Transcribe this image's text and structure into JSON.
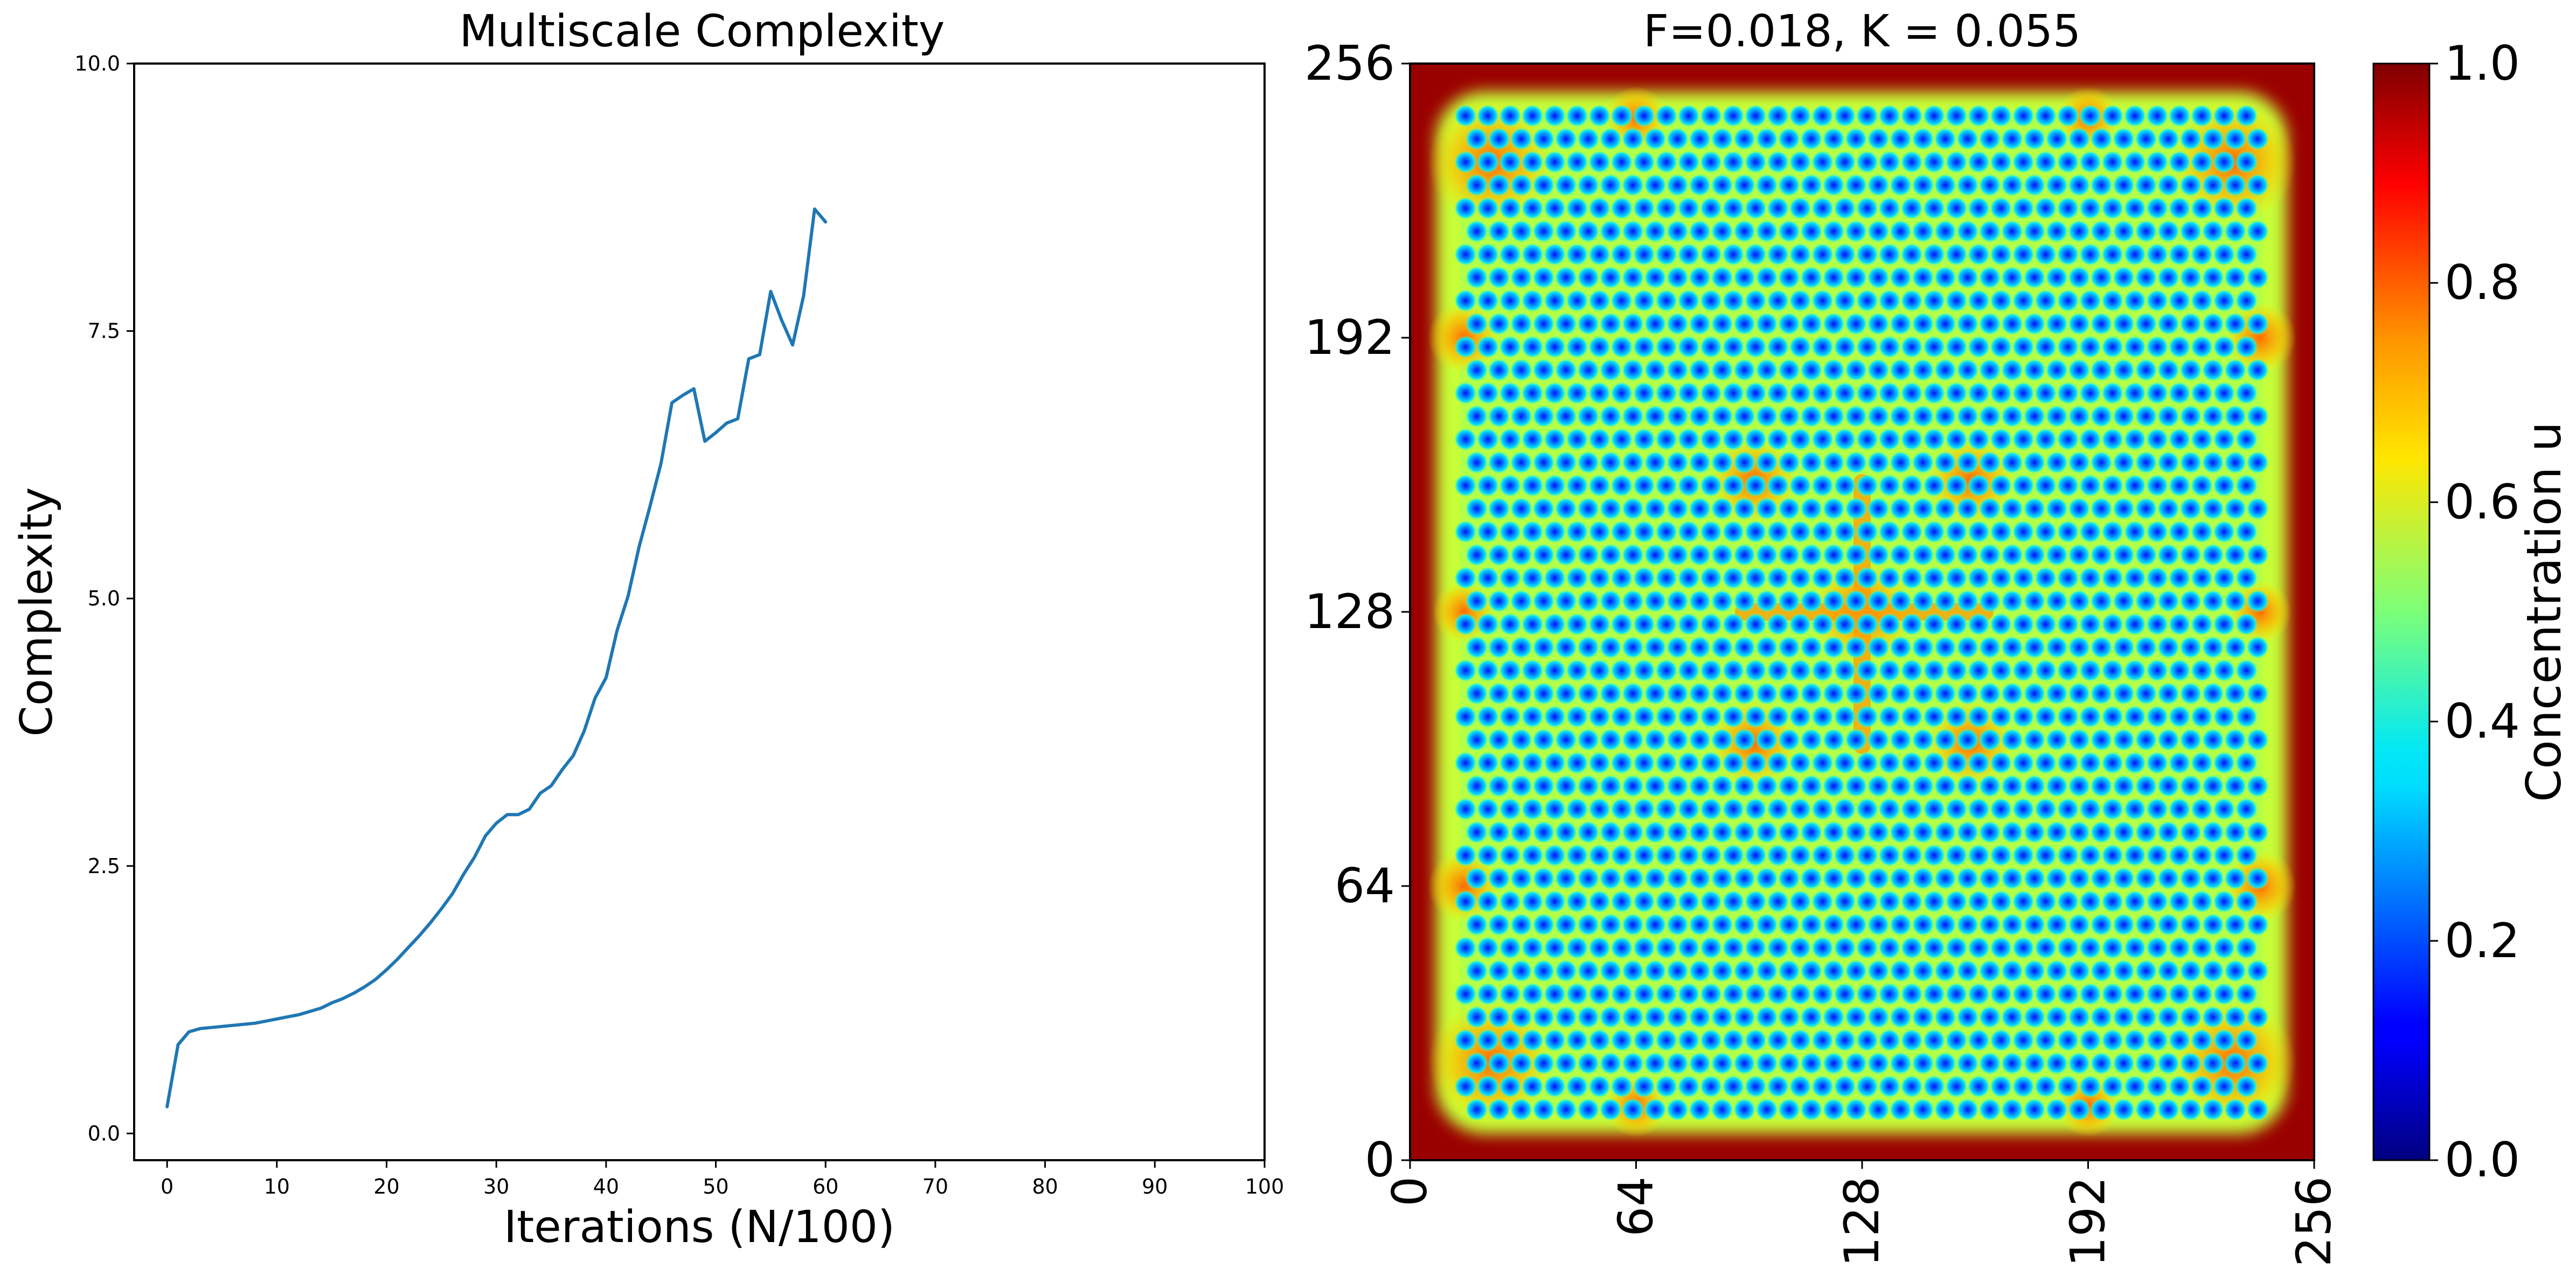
{
  "chart_data": [
    {
      "type": "line",
      "title": "Multiscale Complexity",
      "xlabel": "Iterations (N/100)",
      "ylabel": "Complexity",
      "xlim": [
        -3,
        100
      ],
      "ylim": [
        -0.25,
        10.0
      ],
      "xticks": [
        0,
        10,
        20,
        30,
        40,
        50,
        60,
        70,
        80,
        90,
        100
      ],
      "xtick_labels": [
        "0",
        "10",
        "20",
        "30",
        "40",
        "50",
        "60",
        "70",
        "80",
        "90",
        "100"
      ],
      "yticks": [
        0,
        2.5,
        5,
        7.5,
        10
      ],
      "ytick_labels": [
        "0.0",
        "2.5",
        "5.0",
        "7.5",
        "10.0"
      ],
      "grid": false,
      "series": [
        {
          "color": "#1f77b4",
          "x": [
            0,
            1,
            2,
            3,
            4,
            5,
            6,
            7,
            8,
            9,
            10,
            11,
            12,
            13,
            14,
            15,
            16,
            17,
            18,
            19,
            20,
            21,
            22,
            23,
            24,
            25,
            26,
            27,
            28,
            29,
            30,
            31,
            32,
            33,
            34,
            35,
            36,
            37,
            38,
            39,
            40,
            41,
            42,
            43,
            44,
            45,
            46,
            47,
            48,
            49,
            50,
            51,
            52,
            53,
            54,
            55,
            56,
            57,
            58,
            59,
            60
          ],
          "y": [
            0.25,
            0.83,
            0.95,
            0.98,
            0.99,
            1.0,
            1.01,
            1.02,
            1.03,
            1.05,
            1.07,
            1.09,
            1.11,
            1.14,
            1.17,
            1.22,
            1.26,
            1.31,
            1.37,
            1.44,
            1.53,
            1.63,
            1.74,
            1.85,
            1.97,
            2.1,
            2.24,
            2.42,
            2.58,
            2.78,
            2.9,
            2.98,
            2.98,
            3.03,
            3.18,
            3.25,
            3.4,
            3.53,
            3.76,
            4.07,
            4.26,
            4.7,
            5.02,
            5.48,
            5.86,
            6.26,
            6.83,
            6.9,
            6.96,
            6.47,
            6.55,
            6.64,
            6.68,
            7.24,
            7.28,
            7.87,
            7.6,
            7.37,
            7.83,
            8.64,
            8.52
          ]
        }
      ]
    },
    {
      "type": "heatmap",
      "title": "F=0.018, K = 0.055",
      "xlim": [
        0,
        256
      ],
      "ylim": [
        0,
        256
      ],
      "xticks": [
        0,
        64,
        128,
        192,
        256
      ],
      "xtick_labels": [
        "0",
        "64",
        "128",
        "192",
        "256"
      ],
      "yticks": [
        0,
        64,
        128,
        192,
        256
      ],
      "ytick_labels": [
        "0",
        "64",
        "128",
        "192",
        "256"
      ],
      "colormap": "jet",
      "colorbar": {
        "label": "Concentration u",
        "range": [
          0.0,
          1.0
        ],
        "ticks": [
          0.0,
          0.2,
          0.4,
          0.6,
          0.8,
          1.0
        ],
        "tick_labels": [
          "0.0",
          "0.2",
          "0.4",
          "0.6",
          "0.8",
          "1.0"
        ]
      }
    }
  ]
}
